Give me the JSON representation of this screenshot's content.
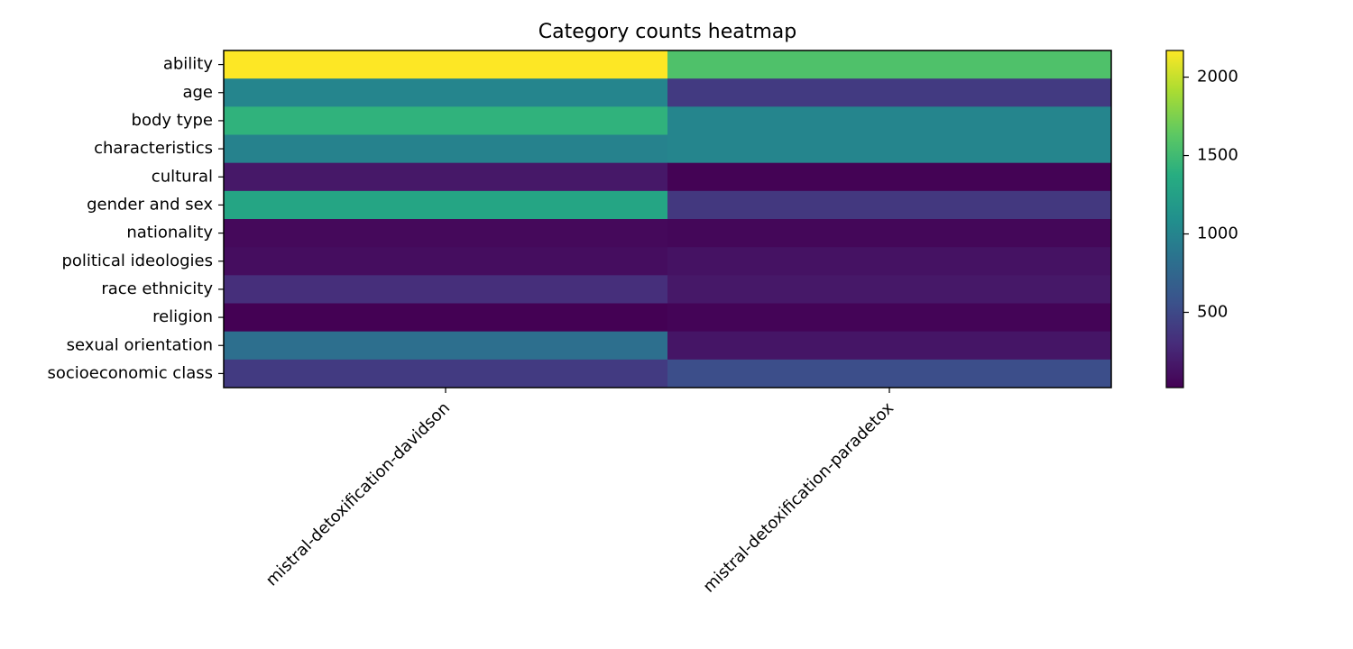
{
  "chart_data": {
    "type": "heatmap",
    "title": "Category counts heatmap",
    "columns": [
      "mistral-detoxification-davidson",
      "mistral-detoxification-paradetox"
    ],
    "rows": [
      "ability",
      "age",
      "body type",
      "characteristics",
      "cultural",
      "gender and sex",
      "nationality",
      "political ideologies",
      "race ethnicity",
      "religion",
      "sexual orientation",
      "socioeconomic class"
    ],
    "values": [
      [
        2170,
        1570
      ],
      [
        1000,
        400
      ],
      [
        1420,
        1000
      ],
      [
        980,
        1000
      ],
      [
        170,
        30
      ],
      [
        1300,
        380
      ],
      [
        70,
        60
      ],
      [
        100,
        130
      ],
      [
        320,
        170
      ],
      [
        20,
        40
      ],
      [
        820,
        150
      ],
      [
        400,
        540
      ]
    ],
    "colorbar": {
      "ticks": [
        500,
        1000,
        1500,
        2000
      ],
      "range": [
        20,
        2170
      ],
      "colormap": "viridis"
    }
  }
}
